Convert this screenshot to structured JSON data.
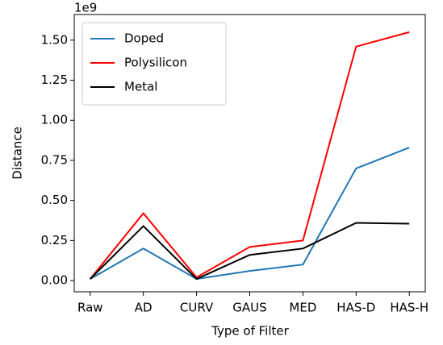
{
  "chart_data": {
    "type": "line",
    "x_label": "Type of Filter",
    "y_label": "Distance",
    "y_offset_label": "1e9",
    "categories": [
      "Raw",
      "AD",
      "CURV",
      "GAUS",
      "MED",
      "HAS-D",
      "HAS-H"
    ],
    "series": [
      {
        "name": "Doped",
        "color": "#1f77b4",
        "values": [
          0.01,
          0.2,
          0.01,
          0.06,
          0.1,
          0.7,
          0.83
        ]
      },
      {
        "name": "Polysilicon",
        "color": "#ff0000",
        "values": [
          0.01,
          0.42,
          0.02,
          0.21,
          0.25,
          1.46,
          1.55
        ]
      },
      {
        "name": "Metal",
        "color": "#000000",
        "values": [
          0.01,
          0.34,
          0.01,
          0.16,
          0.2,
          0.36,
          0.355
        ]
      }
    ],
    "ylim": [
      -0.07,
      1.66
    ],
    "yticks": [
      {
        "value": 0,
        "label": "0.00"
      },
      {
        "value": 0.25,
        "label": "0.25"
      },
      {
        "value": 0.5,
        "label": "0.50"
      },
      {
        "value": 0.75,
        "label": "0.75"
      },
      {
        "value": 1,
        "label": "1.00"
      },
      {
        "value": 1.25,
        "label": "1.25"
      },
      {
        "value": 1.5,
        "label": "1.50"
      }
    ],
    "grid": false,
    "legend": "upper left"
  }
}
